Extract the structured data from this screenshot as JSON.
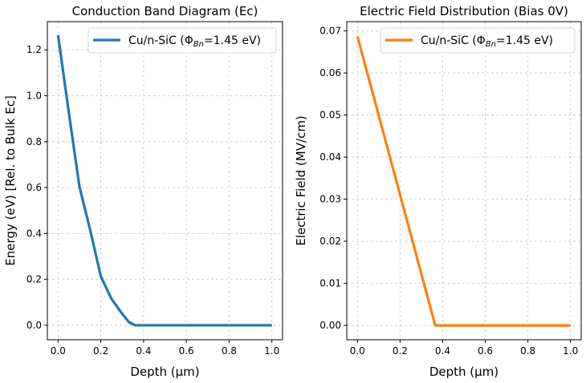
{
  "chart_data": [
    {
      "type": "line",
      "title": "Conduction Band Diagram (Ec)",
      "xlabel": "Depth (μm)",
      "ylabel": "Energy (eV) [Rel. to Bulk Ec]",
      "xlim": [
        -0.05,
        1.05
      ],
      "ylim": [
        -0.063,
        1.323
      ],
      "xticks": [
        "0.0",
        "0.2",
        "0.4",
        "0.6",
        "0.8",
        "1.0"
      ],
      "yticks": [
        "0.0",
        "0.2",
        "0.4",
        "0.6",
        "0.8",
        "1.0",
        "1.2"
      ],
      "grid": true,
      "legend": "top-right",
      "series": [
        {
          "name": "Cu/n-SiC (Φ_Bn=1.45 eV)",
          "color": "#1f77b4",
          "x": [
            0,
            0.05,
            0.1,
            0.15,
            0.2,
            0.25,
            0.3,
            0.33,
            0.36,
            1.0
          ],
          "y": [
            1.264,
            0.929,
            0.604,
            0.416,
            0.213,
            0.115,
            0.05,
            0.015,
            0,
            0
          ]
        }
      ]
    },
    {
      "type": "line",
      "title": "Electric Field Distribution (Bias 0V)",
      "xlabel": "Depth (μm)",
      "ylabel": "Electric Field (MV/cm)",
      "xlim": [
        -0.05,
        1.05
      ],
      "ylim": [
        -0.0034,
        0.0722
      ],
      "xticks": [
        "0.0",
        "0.2",
        "0.4",
        "0.6",
        "0.8",
        "1.0"
      ],
      "yticks": [
        "0.00",
        "0.01",
        "0.02",
        "0.03",
        "0.04",
        "0.05",
        "0.06",
        "0.07"
      ],
      "grid": true,
      "legend": "top-right",
      "series": [
        {
          "name": "Cu/n-SiC (Φ_Bn=1.45 eV)",
          "color": "#ff7f0e",
          "x": [
            0,
            0.365,
            1.0
          ],
          "y": [
            0.0687,
            0,
            0
          ]
        }
      ]
    }
  ]
}
